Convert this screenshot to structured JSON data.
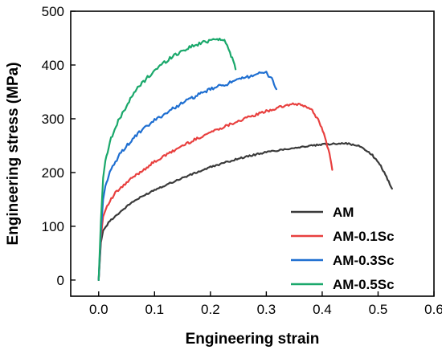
{
  "chart_data": {
    "type": "line",
    "title": "",
    "xlabel": "Engineering strain",
    "ylabel": "Engineering stress (MPa)",
    "xlim": [
      -0.05,
      0.6
    ],
    "ylim": [
      -30,
      500
    ],
    "x_ticks": [
      0.0,
      0.1,
      0.2,
      0.3,
      0.4,
      0.5,
      0.6
    ],
    "x_tick_labels": [
      "0.0",
      "0.1",
      "0.2",
      "0.3",
      "0.4",
      "0.5",
      "0.6"
    ],
    "y_ticks": [
      0,
      100,
      200,
      300,
      400,
      500
    ],
    "y_tick_labels": [
      "0",
      "100",
      "200",
      "300",
      "400",
      "500"
    ],
    "grid": false,
    "legend_position": "bottom-right",
    "series": [
      {
        "name": "AM",
        "color": "#3a3a3a",
        "points": [
          [
            0.0,
            0
          ],
          [
            0.004,
            70
          ],
          [
            0.008,
            92
          ],
          [
            0.02,
            110
          ],
          [
            0.04,
            128
          ],
          [
            0.06,
            145
          ],
          [
            0.1,
            168
          ],
          [
            0.15,
            190
          ],
          [
            0.2,
            210
          ],
          [
            0.25,
            226
          ],
          [
            0.3,
            238
          ],
          [
            0.35,
            246
          ],
          [
            0.4,
            252
          ],
          [
            0.44,
            255
          ],
          [
            0.47,
            248
          ],
          [
            0.49,
            232
          ],
          [
            0.505,
            212
          ],
          [
            0.515,
            192
          ],
          [
            0.525,
            170
          ]
        ]
      },
      {
        "name": "AM-0.1Sc",
        "color": "#e8403f",
        "points": [
          [
            0.0,
            0
          ],
          [
            0.004,
            80
          ],
          [
            0.008,
            118
          ],
          [
            0.015,
            138
          ],
          [
            0.03,
            162
          ],
          [
            0.06,
            190
          ],
          [
            0.1,
            220
          ],
          [
            0.15,
            250
          ],
          [
            0.2,
            275
          ],
          [
            0.25,
            296
          ],
          [
            0.3,
            314
          ],
          [
            0.34,
            326
          ],
          [
            0.36,
            327
          ],
          [
            0.38,
            318
          ],
          [
            0.395,
            295
          ],
          [
            0.405,
            265
          ],
          [
            0.413,
            235
          ],
          [
            0.418,
            205
          ]
        ]
      },
      {
        "name": "AM-0.3Sc",
        "color": "#1f6fd1",
        "points": [
          [
            0.0,
            0
          ],
          [
            0.004,
            90
          ],
          [
            0.008,
            150
          ],
          [
            0.012,
            175
          ],
          [
            0.02,
            200
          ],
          [
            0.04,
            238
          ],
          [
            0.07,
            272
          ],
          [
            0.1,
            297
          ],
          [
            0.15,
            330
          ],
          [
            0.2,
            355
          ],
          [
            0.25,
            372
          ],
          [
            0.28,
            383
          ],
          [
            0.3,
            385
          ],
          [
            0.31,
            375
          ],
          [
            0.318,
            355
          ]
        ]
      },
      {
        "name": "AM-0.5Sc",
        "color": "#1aa86b",
        "points": [
          [
            0.0,
            0
          ],
          [
            0.004,
            110
          ],
          [
            0.008,
            190
          ],
          [
            0.012,
            222
          ],
          [
            0.02,
            258
          ],
          [
            0.035,
            295
          ],
          [
            0.05,
            325
          ],
          [
            0.07,
            358
          ],
          [
            0.1,
            390
          ],
          [
            0.13,
            415
          ],
          [
            0.16,
            432
          ],
          [
            0.19,
            443
          ],
          [
            0.21,
            450
          ],
          [
            0.225,
            445
          ],
          [
            0.235,
            425
          ],
          [
            0.245,
            392
          ]
        ]
      }
    ]
  }
}
